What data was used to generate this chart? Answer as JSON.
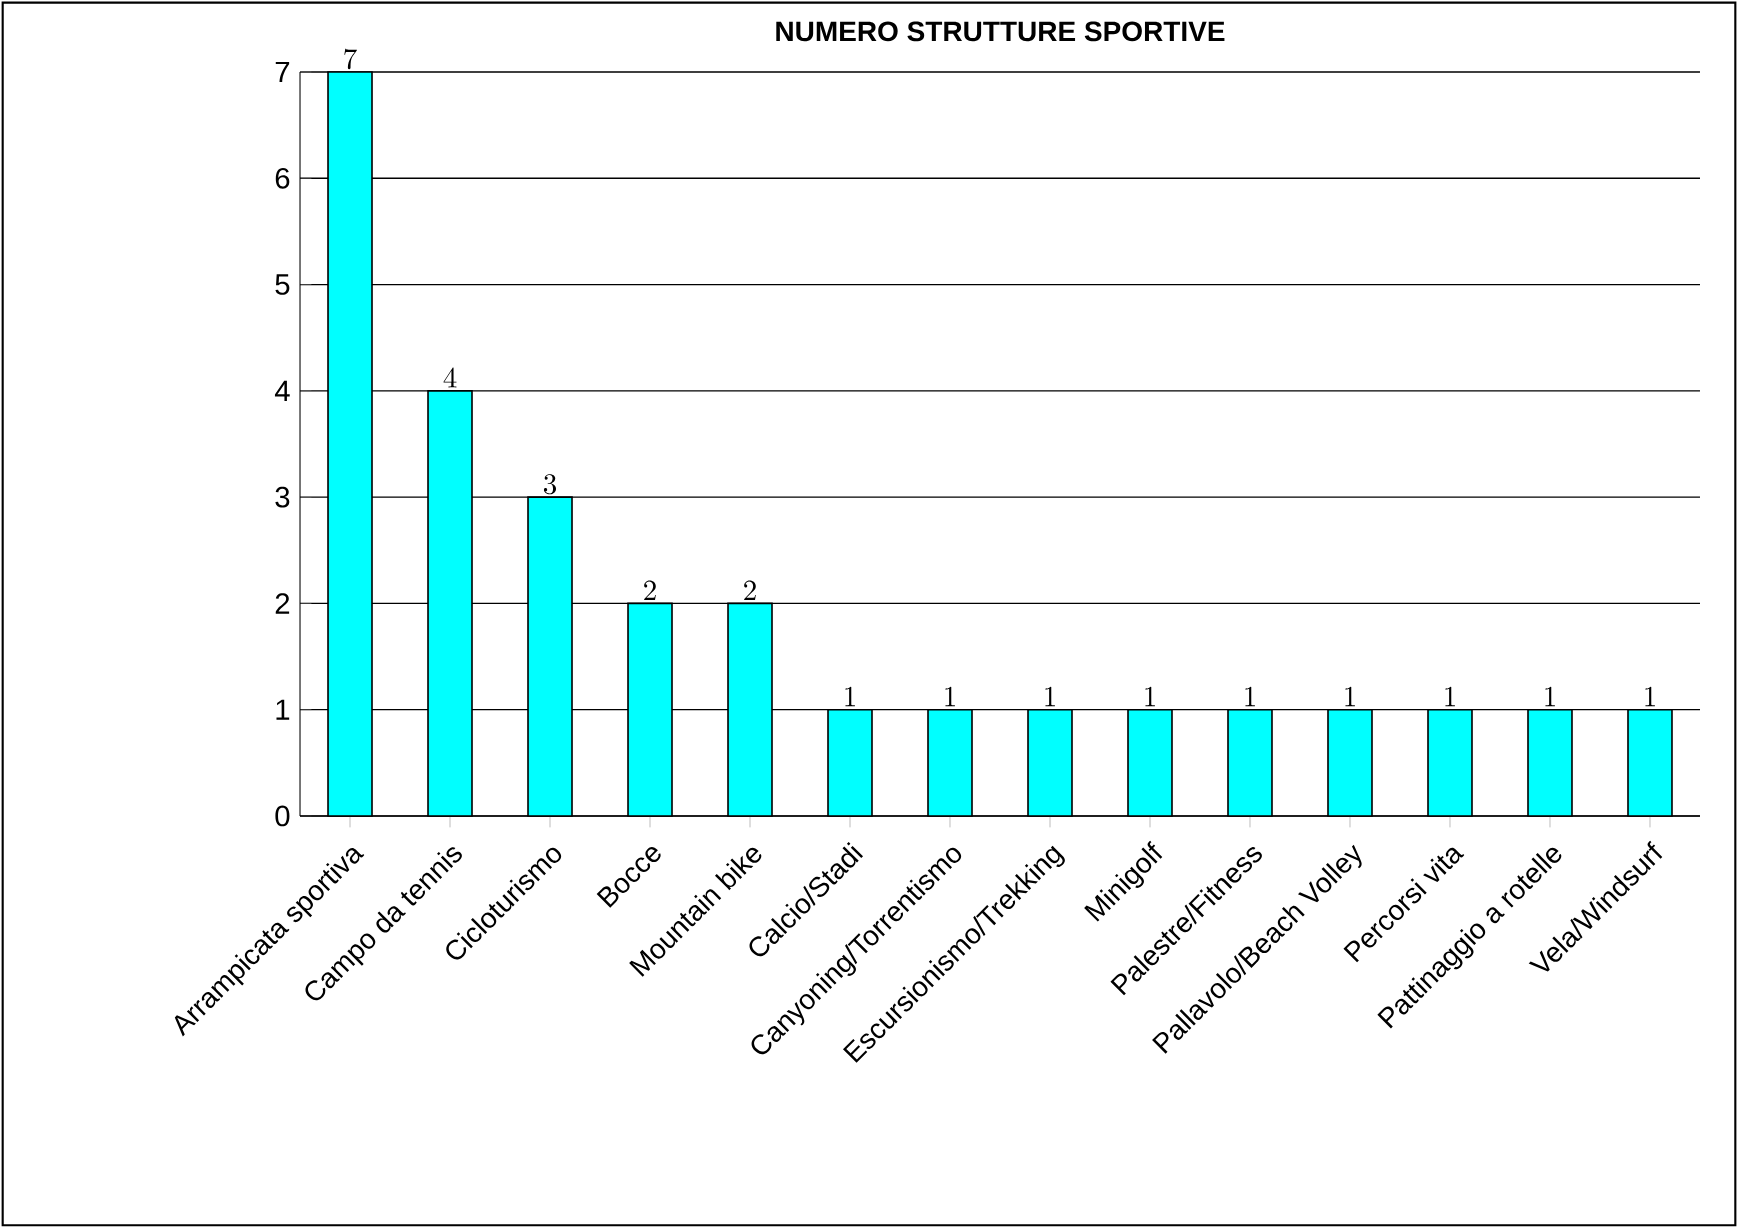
{
  "chart_data": {
    "type": "bar",
    "title": "NUMERO STRUTTURE SPORTIVE",
    "categories": [
      "Arrampicata sportiva",
      "Campo da tennis",
      "Cicloturismo",
      "Bocce",
      "Mountain bike",
      "Calcio/Stadi",
      "Canyoning/Torrentismo",
      "Escursionismo/Trekking",
      "Minigolf",
      "Palestre/Fitness",
      "Pallavolo/Beach Volley",
      "Percorsi vita",
      "Pattinaggio a rotelle",
      "Vela/Windsurf"
    ],
    "values": [
      7,
      4,
      3,
      2,
      2,
      1,
      1,
      1,
      1,
      1,
      1,
      1,
      1,
      1
    ],
    "color": "#00ffff",
    "ylim": [
      0,
      7
    ],
    "yticks": [
      0,
      1,
      2,
      3,
      4,
      5,
      6,
      7
    ],
    "grid": "y",
    "data_labels": true
  }
}
